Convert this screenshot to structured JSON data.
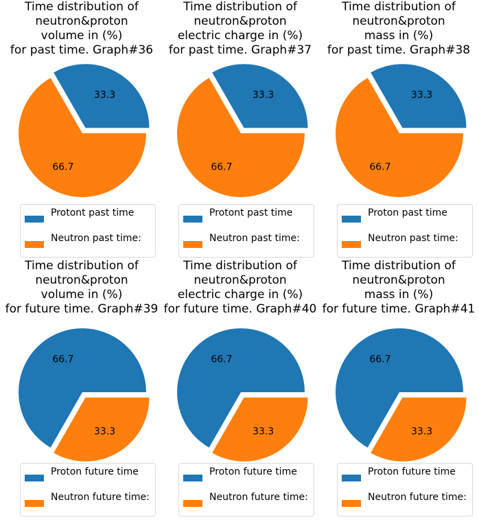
{
  "colors": {
    "blue": "#1f77b4",
    "orange": "#ff7f0e"
  },
  "chart_data": [
    {
      "type": "pie",
      "title": [
        "Time distribution of",
        "neutron&proton",
        "volume in (%)",
        "for past time. Graph#36"
      ],
      "slices": [
        {
          "label": "Protont past time",
          "value": 33.3,
          "value_label": "33.3",
          "color": "#1f77b4",
          "explode": true
        },
        {
          "label": "Neutron past time:",
          "value": 66.7,
          "value_label": "66.7",
          "color": "#ff7f0e",
          "explode": false
        }
      ],
      "legend": "bottom"
    },
    {
      "type": "pie",
      "title": [
        "Time distribution of",
        "neutron&proton",
        "electric charge in (%)",
        "for past time. Graph#37"
      ],
      "slices": [
        {
          "label": "Protont past time",
          "value": 33.3,
          "value_label": "33.3",
          "color": "#1f77b4",
          "explode": true
        },
        {
          "label": "Neutron past time:",
          "value": 66.7,
          "value_label": "66.7",
          "color": "#ff7f0e",
          "explode": false
        }
      ],
      "legend": "bottom"
    },
    {
      "type": "pie",
      "title": [
        "Time distribution of",
        "neutron&proton",
        "mass in (%)",
        "for past time. Graph#38"
      ],
      "slices": [
        {
          "label": "Proton past time",
          "value": 33.3,
          "value_label": "33.3",
          "color": "#1f77b4",
          "explode": true
        },
        {
          "label": "Neutron past time:",
          "value": 66.7,
          "value_label": "66.7",
          "color": "#ff7f0e",
          "explode": false
        }
      ],
      "legend": "bottom"
    },
    {
      "type": "pie",
      "title": [
        "Time distribution of",
        "neutron&proton",
        "volume in (%)",
        "for future time. Graph#39"
      ],
      "slices": [
        {
          "label": "Proton future time",
          "value": 66.7,
          "value_label": "66.7",
          "color": "#1f77b4",
          "explode": false
        },
        {
          "label": "Neutron future time:",
          "value": 33.3,
          "value_label": "33.3",
          "color": "#ff7f0e",
          "explode": true
        }
      ],
      "legend": "bottom"
    },
    {
      "type": "pie",
      "title": [
        "Time distribution of",
        "neutron&proton",
        "electric charge in (%)",
        "for future time. Graph#40"
      ],
      "slices": [
        {
          "label": "Proton future time",
          "value": 66.7,
          "value_label": "66.7",
          "color": "#1f77b4",
          "explode": false
        },
        {
          "label": "Neutron future time:",
          "value": 33.3,
          "value_label": "33.3",
          "color": "#ff7f0e",
          "explode": true
        }
      ],
      "legend": "bottom"
    },
    {
      "type": "pie",
      "title": [
        "Time distribution of",
        "neutron&proton",
        "mass in (%)",
        "for future time. Graph#41"
      ],
      "slices": [
        {
          "label": "Proton future time",
          "value": 66.7,
          "value_label": "66.7",
          "color": "#1f77b4",
          "explode": false
        },
        {
          "label": "Neutron future time:",
          "value": 33.3,
          "value_label": "33.3",
          "color": "#ff7f0e",
          "explode": true
        }
      ],
      "legend": "bottom"
    }
  ]
}
